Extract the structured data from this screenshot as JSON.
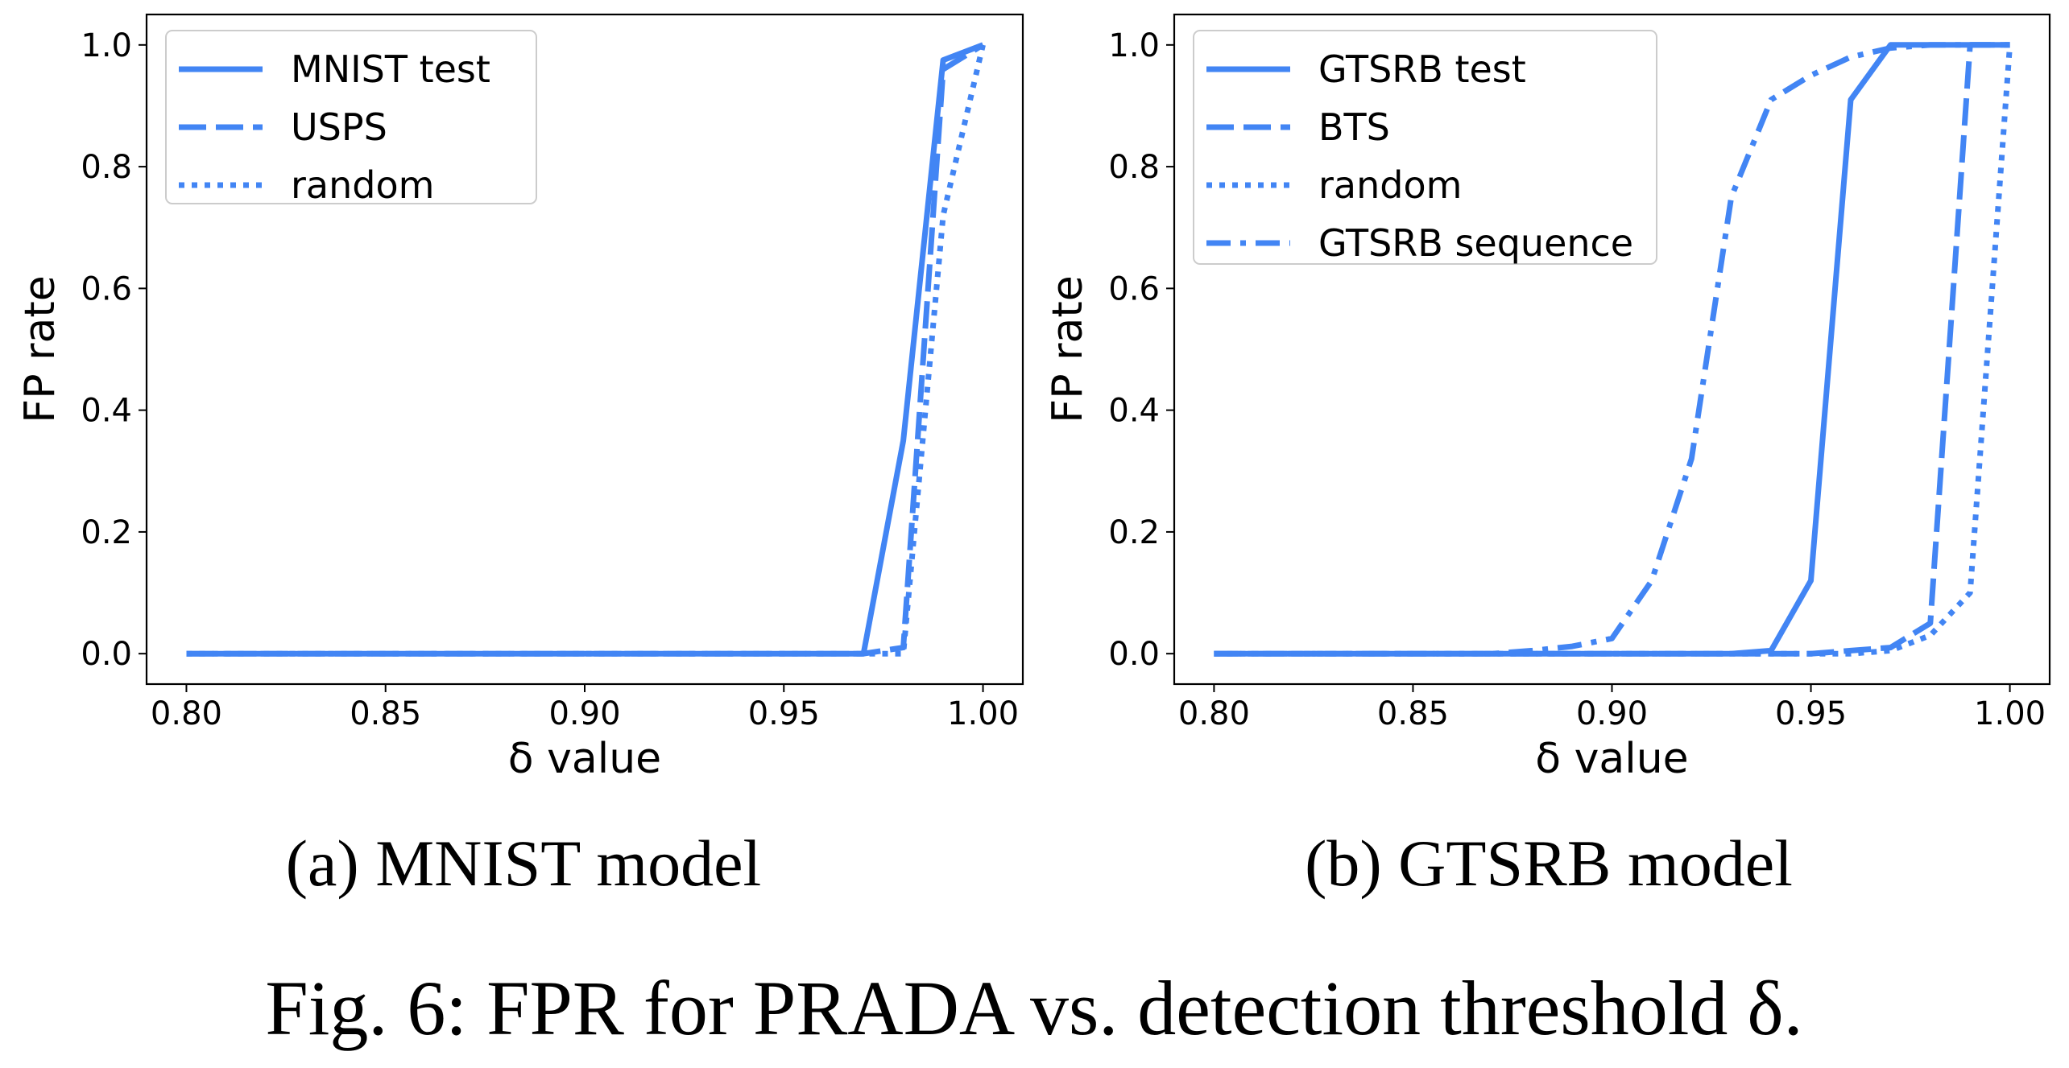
{
  "figure_caption": "Fig. 6:  FPR for PRADA vs. detection threshold δ.",
  "chart_data": [
    {
      "type": "line",
      "subcaption": "(a) MNIST model",
      "xlabel": "δ value",
      "ylabel": "FP rate",
      "xlim": [
        0.79,
        1.01
      ],
      "ylim": [
        -0.05,
        1.05
      ],
      "xticks": [
        "0.80",
        "0.85",
        "0.90",
        "0.95",
        "1.00"
      ],
      "yticks": [
        "0.0",
        "0.2",
        "0.4",
        "0.6",
        "0.8",
        "1.0"
      ],
      "legend_position": "top-left",
      "grid": false,
      "color": "#4285f4",
      "series": [
        {
          "name": "MNIST test",
          "style": "solid",
          "x": [
            0.8,
            0.97,
            0.98,
            0.99,
            1.0
          ],
          "y": [
            0.0,
            0.0,
            0.35,
            0.975,
            1.0
          ]
        },
        {
          "name": "USPS",
          "style": "dashed",
          "x": [
            0.8,
            0.97,
            0.98,
            0.99,
            1.0
          ],
          "y": [
            0.0,
            0.0,
            0.01,
            0.96,
            1.0
          ]
        },
        {
          "name": "random",
          "style": "dotted",
          "x": [
            0.8,
            0.97,
            0.98,
            0.99,
            1.0
          ],
          "y": [
            0.0,
            0.0,
            0.0,
            0.72,
            1.0
          ]
        }
      ]
    },
    {
      "type": "line",
      "subcaption": "(b) GTSRB model",
      "xlabel": "δ value",
      "ylabel": "FP rate",
      "xlim": [
        0.79,
        1.01
      ],
      "ylim": [
        -0.05,
        1.05
      ],
      "xticks": [
        "0.80",
        "0.85",
        "0.90",
        "0.95",
        "1.00"
      ],
      "yticks": [
        "0.0",
        "0.2",
        "0.4",
        "0.6",
        "0.8",
        "1.0"
      ],
      "legend_position": "top-left",
      "grid": false,
      "color": "#4285f4",
      "series": [
        {
          "name": "GTSRB test",
          "style": "solid",
          "x": [
            0.8,
            0.93,
            0.94,
            0.95,
            0.96,
            0.97,
            0.98,
            0.99,
            1.0
          ],
          "y": [
            0.0,
            0.0,
            0.005,
            0.12,
            0.91,
            1.0,
            1.0,
            1.0,
            1.0
          ]
        },
        {
          "name": "BTS",
          "style": "dashed",
          "x": [
            0.8,
            0.94,
            0.95,
            0.96,
            0.97,
            0.98,
            0.99,
            1.0
          ],
          "y": [
            0.0,
            0.0,
            0.0,
            0.005,
            0.01,
            0.05,
            1.0,
            1.0
          ]
        },
        {
          "name": "random",
          "style": "dotted",
          "x": [
            0.8,
            0.95,
            0.96,
            0.97,
            0.98,
            0.99,
            1.0
          ],
          "y": [
            0.0,
            0.0,
            0.0,
            0.005,
            0.03,
            0.1,
            1.0
          ]
        },
        {
          "name": "GTSRB sequence",
          "style": "dashdot",
          "x": [
            0.8,
            0.87,
            0.88,
            0.89,
            0.9,
            0.91,
            0.92,
            0.93,
            0.94,
            0.95,
            0.96,
            0.97,
            0.98,
            1.0
          ],
          "y": [
            0.0,
            0.0,
            0.005,
            0.012,
            0.025,
            0.12,
            0.32,
            0.75,
            0.91,
            0.95,
            0.98,
            0.995,
            1.0,
            1.0
          ]
        }
      ]
    }
  ]
}
